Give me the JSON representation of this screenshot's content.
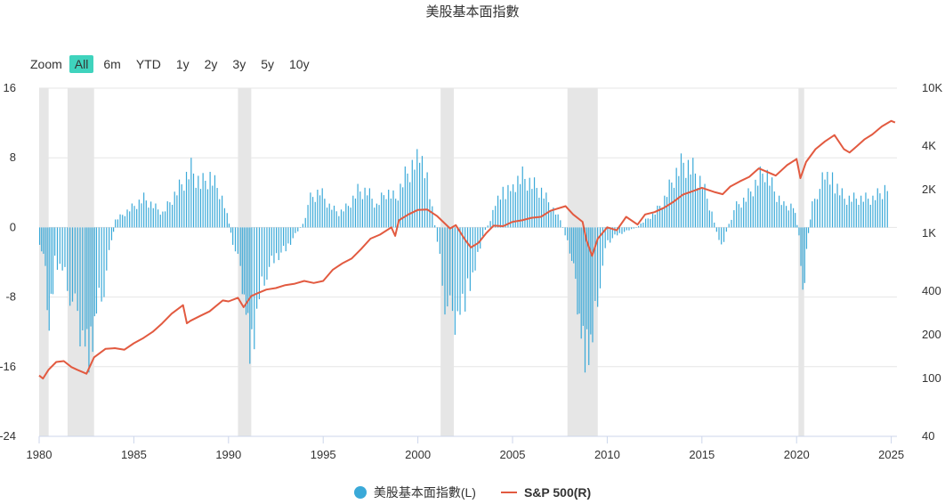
{
  "title": "美股基本面指數",
  "zoom": {
    "label": "Zoom",
    "buttons": [
      "All",
      "6m",
      "YTD",
      "1y",
      "2y",
      "3y",
      "5y",
      "10y"
    ],
    "active": "All"
  },
  "colors": {
    "bar": "#3aa9d8",
    "line": "#e25a40",
    "recession": "#e6e6e6",
    "grid": "#e6e6e6",
    "active_button": "#3fd3bd"
  },
  "legend": {
    "bar_series": "美股基本面指數(L)",
    "line_series": "S&P 500(R)"
  },
  "chart_data": {
    "type": "bar+line",
    "x_axis": {
      "range": [
        1980,
        2025.3
      ],
      "ticks": [
        "1980",
        "1985",
        "1990",
        "1995",
        "2000",
        "2005",
        "2010",
        "2015",
        "2020",
        "2025"
      ]
    },
    "y_left": {
      "range": [
        -24,
        16
      ],
      "ticks": [
        "16",
        "8",
        "0",
        "-8",
        "-16",
        "-24"
      ]
    },
    "y_right": {
      "scale": "log",
      "range": [
        40,
        10000
      ],
      "ticks": [
        [
          "10K",
          10000
        ],
        [
          "4K",
          4000
        ],
        [
          "2K",
          2000
        ],
        [
          "1K",
          1000
        ],
        [
          "400",
          400
        ],
        [
          "200",
          200
        ],
        [
          "100",
          100
        ],
        [
          "40",
          40
        ]
      ]
    },
    "recessions": [
      [
        1980.0,
        1980.5
      ],
      [
        1981.5,
        1982.9
      ],
      [
        1990.5,
        1991.2
      ],
      [
        2001.2,
        2001.9
      ],
      [
        2007.9,
        2009.5
      ],
      [
        2020.1,
        2020.4
      ]
    ],
    "series": [
      {
        "name": "美股基本面指數(L)",
        "axis": "left",
        "type": "bar",
        "points": [
          [
            1980.0,
            -2
          ],
          [
            1980.3,
            -6
          ],
          [
            1980.5,
            -13
          ],
          [
            1980.8,
            -5
          ],
          [
            1981.2,
            -6
          ],
          [
            1981.6,
            -9
          ],
          [
            1982.0,
            -13
          ],
          [
            1982.4,
            -15
          ],
          [
            1982.7,
            -17.5
          ],
          [
            1983.0,
            -12
          ],
          [
            1983.4,
            -8
          ],
          [
            1983.8,
            -2
          ],
          [
            1984.0,
            1
          ],
          [
            1984.5,
            2
          ],
          [
            1985.0,
            3
          ],
          [
            1985.5,
            4
          ],
          [
            1986.0,
            3
          ],
          [
            1986.5,
            2
          ],
          [
            1987.0,
            4
          ],
          [
            1987.5,
            6
          ],
          [
            1988.0,
            8
          ],
          [
            1988.5,
            6
          ],
          [
            1989.0,
            7
          ],
          [
            1989.5,
            5
          ],
          [
            1989.9,
            2
          ],
          [
            1990.2,
            -2
          ],
          [
            1990.6,
            -6
          ],
          [
            1990.9,
            -11
          ],
          [
            1991.2,
            -18
          ],
          [
            1991.6,
            -10
          ],
          [
            1992.0,
            -6
          ],
          [
            1992.5,
            -4
          ],
          [
            1993.0,
            -3
          ],
          [
            1993.5,
            -1
          ],
          [
            1993.9,
            0.5
          ],
          [
            1994.3,
            4
          ],
          [
            1994.8,
            5
          ],
          [
            1995.3,
            3
          ],
          [
            1995.8,
            2
          ],
          [
            1996.3,
            3
          ],
          [
            1996.8,
            5
          ],
          [
            1997.3,
            5
          ],
          [
            1997.8,
            3
          ],
          [
            1998.3,
            5
          ],
          [
            1998.8,
            4
          ],
          [
            1999.3,
            7
          ],
          [
            1999.8,
            9
          ],
          [
            2000.2,
            9
          ],
          [
            2000.6,
            5
          ],
          [
            2001.0,
            -2
          ],
          [
            2001.4,
            -10
          ],
          [
            2001.8,
            -13
          ],
          [
            2002.2,
            -11
          ],
          [
            2002.6,
            -9
          ],
          [
            2003.0,
            -6
          ],
          [
            2003.4,
            -1
          ],
          [
            2003.8,
            1
          ],
          [
            2004.2,
            4
          ],
          [
            2004.6,
            5
          ],
          [
            2005.0,
            6
          ],
          [
            2005.5,
            7
          ],
          [
            2006.0,
            6
          ],
          [
            2006.5,
            5
          ],
          [
            2007.0,
            3
          ],
          [
            2007.5,
            1
          ],
          [
            2008.0,
            -3
          ],
          [
            2008.3,
            -8
          ],
          [
            2008.6,
            -14
          ],
          [
            2008.9,
            -18
          ],
          [
            2009.2,
            -16
          ],
          [
            2009.6,
            -7
          ],
          [
            2010.0,
            -2
          ],
          [
            2010.5,
            -1
          ],
          [
            2011.0,
            -0.5
          ],
          [
            2011.5,
            0
          ],
          [
            2012.0,
            1
          ],
          [
            2012.5,
            2
          ],
          [
            2013.0,
            4
          ],
          [
            2013.5,
            7
          ],
          [
            2014.0,
            9
          ],
          [
            2014.5,
            8
          ],
          [
            2015.0,
            6
          ],
          [
            2015.5,
            2
          ],
          [
            2016.0,
            -3
          ],
          [
            2016.4,
            0.5
          ],
          [
            2016.8,
            3
          ],
          [
            2017.3,
            4
          ],
          [
            2017.8,
            6
          ],
          [
            2018.3,
            8
          ],
          [
            2018.8,
            5
          ],
          [
            2019.3,
            3
          ],
          [
            2019.8,
            3
          ],
          [
            2020.1,
            -1
          ],
          [
            2020.3,
            -11
          ],
          [
            2020.5,
            -3
          ],
          [
            2020.8,
            3
          ],
          [
            2021.2,
            6
          ],
          [
            2021.6,
            7
          ],
          [
            2022.0,
            6
          ],
          [
            2022.5,
            4
          ],
          [
            2023.0,
            4
          ],
          [
            2023.5,
            4
          ],
          [
            2024.0,
            4
          ],
          [
            2024.5,
            5
          ],
          [
            2024.9,
            6
          ]
        ]
      },
      {
        "name": "S&P 500(R)",
        "axis": "right",
        "type": "line",
        "points": [
          [
            1980.0,
            105
          ],
          [
            1980.2,
            100
          ],
          [
            1980.5,
            115
          ],
          [
            1980.9,
            130
          ],
          [
            1981.3,
            132
          ],
          [
            1981.7,
            120
          ],
          [
            1982.0,
            115
          ],
          [
            1982.5,
            108
          ],
          [
            1982.9,
            140
          ],
          [
            1983.5,
            160
          ],
          [
            1984.0,
            162
          ],
          [
            1984.5,
            158
          ],
          [
            1985.0,
            175
          ],
          [
            1985.5,
            190
          ],
          [
            1986.0,
            210
          ],
          [
            1986.5,
            240
          ],
          [
            1987.0,
            280
          ],
          [
            1987.6,
            320
          ],
          [
            1987.8,
            240
          ],
          [
            1988.0,
            250
          ],
          [
            1988.5,
            270
          ],
          [
            1989.0,
            290
          ],
          [
            1989.7,
            345
          ],
          [
            1990.0,
            340
          ],
          [
            1990.5,
            360
          ],
          [
            1990.8,
            310
          ],
          [
            1991.2,
            370
          ],
          [
            1991.6,
            390
          ],
          [
            1992.0,
            410
          ],
          [
            1992.5,
            420
          ],
          [
            1993.0,
            440
          ],
          [
            1993.5,
            450
          ],
          [
            1994.0,
            470
          ],
          [
            1994.5,
            455
          ],
          [
            1995.0,
            470
          ],
          [
            1995.5,
            560
          ],
          [
            1996.0,
            620
          ],
          [
            1996.5,
            670
          ],
          [
            1997.0,
            780
          ],
          [
            1997.5,
            920
          ],
          [
            1998.0,
            980
          ],
          [
            1998.6,
            1100
          ],
          [
            1998.8,
            960
          ],
          [
            1999.0,
            1230
          ],
          [
            1999.5,
            1350
          ],
          [
            2000.0,
            1450
          ],
          [
            2000.5,
            1460
          ],
          [
            2001.0,
            1320
          ],
          [
            2001.7,
            1080
          ],
          [
            2002.0,
            1140
          ],
          [
            2002.5,
            900
          ],
          [
            2002.8,
            800
          ],
          [
            2003.2,
            860
          ],
          [
            2003.6,
            1000
          ],
          [
            2004.0,
            1130
          ],
          [
            2004.5,
            1120
          ],
          [
            2005.0,
            1200
          ],
          [
            2005.5,
            1230
          ],
          [
            2006.0,
            1280
          ],
          [
            2006.5,
            1300
          ],
          [
            2007.0,
            1430
          ],
          [
            2007.8,
            1540
          ],
          [
            2008.2,
            1350
          ],
          [
            2008.7,
            1200
          ],
          [
            2008.9,
            900
          ],
          [
            2009.2,
            700
          ],
          [
            2009.5,
            920
          ],
          [
            2010.0,
            1100
          ],
          [
            2010.5,
            1050
          ],
          [
            2011.0,
            1300
          ],
          [
            2011.6,
            1150
          ],
          [
            2012.0,
            1350
          ],
          [
            2012.5,
            1400
          ],
          [
            2013.0,
            1500
          ],
          [
            2013.5,
            1650
          ],
          [
            2014.0,
            1850
          ],
          [
            2014.5,
            1950
          ],
          [
            2015.0,
            2060
          ],
          [
            2015.7,
            1920
          ],
          [
            2016.1,
            1860
          ],
          [
            2016.5,
            2100
          ],
          [
            2017.0,
            2280
          ],
          [
            2017.5,
            2450
          ],
          [
            2018.0,
            2800
          ],
          [
            2018.9,
            2500
          ],
          [
            2019.5,
            2950
          ],
          [
            2020.0,
            3250
          ],
          [
            2020.2,
            2400
          ],
          [
            2020.5,
            3100
          ],
          [
            2021.0,
            3800
          ],
          [
            2021.5,
            4300
          ],
          [
            2022.0,
            4750
          ],
          [
            2022.5,
            3800
          ],
          [
            2022.8,
            3600
          ],
          [
            2023.2,
            4000
          ],
          [
            2023.6,
            4450
          ],
          [
            2024.0,
            4800
          ],
          [
            2024.5,
            5450
          ],
          [
            2025.0,
            5950
          ],
          [
            2025.2,
            5800
          ]
        ]
      }
    ]
  }
}
